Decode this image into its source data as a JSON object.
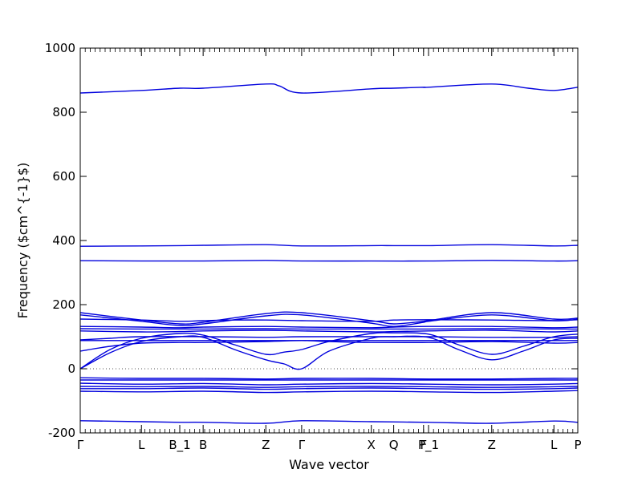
{
  "chart_data": {
    "type": "line",
    "title": "",
    "xlabel": "Wave vector",
    "ylabel": "Frequency ($cm^{-1}$)",
    "ylim": [
      -200,
      1000
    ],
    "yticks": [
      -200,
      0,
      200,
      400,
      600,
      800,
      1000
    ],
    "grid": false,
    "zero_line": true,
    "line_color": "#0000dd",
    "high_symmetry_points": [
      {
        "label": "Γ",
        "x": 0.0
      },
      {
        "label": "L",
        "x": 0.123
      },
      {
        "label": "B_1",
        "x": 0.2
      },
      {
        "label": "B",
        "x": 0.247
      },
      {
        "label": "Z",
        "x": 0.373
      },
      {
        "label": "Γ",
        "x": 0.445
      },
      {
        "label": "X",
        "x": 0.585
      },
      {
        "label": "Q",
        "x": 0.63
      },
      {
        "label": "F",
        "x": 0.69
      },
      {
        "label": "P_1",
        "x": 0.7
      },
      {
        "label": "Z",
        "x": 0.827
      },
      {
        "label": "L",
        "x": 0.952
      },
      {
        "label": "P",
        "x": 1.0
      }
    ],
    "series": [
      {
        "x": [
          0,
          0.123,
          0.2,
          0.247,
          0.373,
          0.4,
          0.445,
          0.585,
          0.63,
          0.69,
          0.7,
          0.827,
          0.9,
          0.952,
          1.0
        ],
        "values": [
          860,
          868,
          875,
          875,
          888,
          882,
          860,
          873,
          875,
          878,
          878,
          888,
          875,
          868,
          878
        ]
      },
      {
        "x": [
          0,
          0.123,
          0.2,
          0.247,
          0.373,
          0.445,
          0.585,
          0.63,
          0.7,
          0.827,
          0.952,
          1.0
        ],
        "values": [
          382,
          383,
          384,
          385,
          387,
          383,
          384,
          384,
          384,
          387,
          383,
          385
        ]
      },
      {
        "x": [
          0,
          0.123,
          0.247,
          0.373,
          0.445,
          0.585,
          0.7,
          0.827,
          0.952,
          1.0
        ],
        "values": [
          337,
          336,
          336,
          338,
          336,
          336,
          336,
          338,
          336,
          337
        ]
      },
      {
        "x": [
          0,
          0.123,
          0.2,
          0.247,
          0.373,
          0.445,
          0.585,
          0.63,
          0.69,
          0.7,
          0.827,
          0.952,
          1.0
        ],
        "values": [
          175,
          152,
          140,
          145,
          172,
          175,
          150,
          140,
          148,
          150,
          175,
          155,
          158
        ]
      },
      {
        "x": [
          0,
          0.123,
          0.2,
          0.247,
          0.373,
          0.445,
          0.585,
          0.63,
          0.69,
          0.7,
          0.827,
          0.952,
          1.0
        ],
        "values": [
          168,
          148,
          135,
          140,
          165,
          168,
          142,
          132,
          145,
          148,
          168,
          150,
          155
        ]
      },
      {
        "x": [
          0,
          0.123,
          0.2,
          0.247,
          0.3,
          0.373,
          0.445,
          0.585,
          0.63,
          0.7,
          0.827,
          0.952,
          1.0
        ],
        "values": [
          155,
          152,
          148,
          150,
          152,
          152,
          150,
          148,
          152,
          153,
          152,
          150,
          153
        ]
      },
      {
        "x": [
          0,
          0.123,
          0.2,
          0.247,
          0.373,
          0.445,
          0.585,
          0.63,
          0.7,
          0.827,
          0.952,
          1.0
        ],
        "values": [
          132,
          130,
          128,
          130,
          132,
          130,
          128,
          130,
          132,
          132,
          128,
          130
        ]
      },
      {
        "x": [
          0,
          0.123,
          0.247,
          0.373,
          0.445,
          0.585,
          0.7,
          0.827,
          0.952,
          1.0
        ],
        "values": [
          125,
          124,
          124,
          125,
          124,
          124,
          124,
          125,
          124,
          124
        ]
      },
      {
        "x": [
          0,
          0.123,
          0.2,
          0.247,
          0.373,
          0.445,
          0.585,
          0.63,
          0.7,
          0.827,
          0.952,
          1.0
        ],
        "values": [
          118,
          115,
          116,
          118,
          120,
          118,
          115,
          116,
          118,
          120,
          115,
          118
        ]
      },
      {
        "x": [
          0,
          0.123,
          0.247,
          0.373,
          0.445,
          0.585,
          0.7,
          0.827,
          0.952,
          1.0
        ],
        "values": [
          88,
          88,
          88,
          88,
          88,
          88,
          88,
          88,
          88,
          88
        ]
      },
      {
        "x": [
          0,
          0.06,
          0.123,
          0.2,
          0.247,
          0.31,
          0.373,
          0.41,
          0.445,
          0.5,
          0.585,
          0.63,
          0.7,
          0.76,
          0.827,
          0.89,
          0.952,
          1.0
        ],
        "values": [
          0,
          60,
          95,
          110,
          105,
          75,
          45,
          52,
          60,
          85,
          110,
          112,
          108,
          75,
          45,
          70,
          100,
          108
        ]
      },
      {
        "x": [
          0,
          0.06,
          0.123,
          0.2,
          0.247,
          0.31,
          0.373,
          0.41,
          0.445,
          0.5,
          0.585,
          0.63,
          0.7,
          0.76,
          0.827,
          0.89,
          0.952,
          1.0
        ],
        "values": [
          0,
          50,
          85,
          100,
          98,
          60,
          28,
          15,
          0,
          55,
          95,
          100,
          98,
          60,
          28,
          55,
          90,
          95
        ]
      },
      {
        "x": [
          0,
          0.06,
          0.123,
          0.2,
          0.247,
          0.373,
          0.445,
          0.5,
          0.585,
          0.7,
          0.827,
          0.952,
          1.0
        ],
        "values": [
          55,
          70,
          80,
          82,
          82,
          85,
          88,
          85,
          82,
          82,
          85,
          80,
          82
        ]
      },
      {
        "x": [
          0,
          0.06,
          0.123,
          0.247,
          0.373,
          0.445,
          0.585,
          0.7,
          0.827,
          0.952,
          1.0
        ],
        "values": [
          90,
          95,
          100,
          100,
          98,
          100,
          100,
          100,
          98,
          98,
          100
        ]
      },
      {
        "x": [
          0,
          0.123,
          0.247,
          0.373,
          0.445,
          0.585,
          0.7,
          0.827,
          0.952,
          1.0
        ],
        "values": [
          -28,
          -30,
          -30,
          -32,
          -30,
          -30,
          -32,
          -32,
          -30,
          -30
        ]
      },
      {
        "x": [
          0,
          0.123,
          0.247,
          0.373,
          0.445,
          0.585,
          0.7,
          0.827,
          0.952,
          1.0
        ],
        "values": [
          -35,
          -35,
          -35,
          -35,
          -35,
          -35,
          -35,
          -35,
          -35,
          -35
        ]
      },
      {
        "x": [
          0,
          0.123,
          0.247,
          0.373,
          0.445,
          0.585,
          0.7,
          0.827,
          0.952,
          1.0
        ],
        "values": [
          -45,
          -48,
          -46,
          -50,
          -48,
          -46,
          -48,
          -50,
          -48,
          -46
        ]
      },
      {
        "x": [
          0,
          0.123,
          0.247,
          0.373,
          0.445,
          0.585,
          0.7,
          0.827,
          0.952,
          1.0
        ],
        "values": [
          -55,
          -56,
          -55,
          -58,
          -56,
          -55,
          -56,
          -58,
          -56,
          -55
        ]
      },
      {
        "x": [
          0,
          0.123,
          0.247,
          0.373,
          0.445,
          0.585,
          0.7,
          0.827,
          0.952,
          1.0
        ],
        "values": [
          -62,
          -62,
          -60,
          -64,
          -62,
          -60,
          -62,
          -64,
          -62,
          -60
        ]
      },
      {
        "x": [
          0,
          0.123,
          0.247,
          0.373,
          0.445,
          0.585,
          0.7,
          0.827,
          0.952,
          1.0
        ],
        "values": [
          -70,
          -72,
          -70,
          -74,
          -72,
          -70,
          -72,
          -74,
          -70,
          -68
        ]
      },
      {
        "x": [
          0,
          0.123,
          0.2,
          0.247,
          0.373,
          0.445,
          0.585,
          0.7,
          0.827,
          0.952,
          1.0
        ],
        "values": [
          -162,
          -165,
          -167,
          -167,
          -170,
          -162,
          -165,
          -167,
          -170,
          -163,
          -167
        ]
      }
    ]
  }
}
